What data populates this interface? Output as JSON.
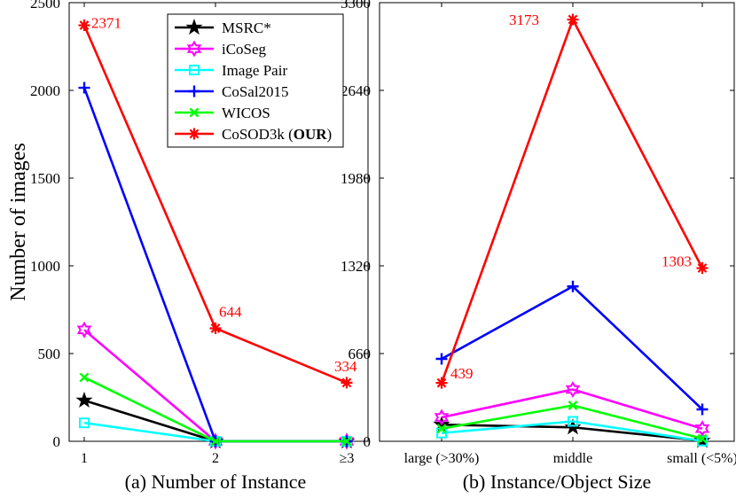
{
  "chart_data": [
    {
      "type": "line",
      "xlabel": "(a) Number of Instance",
      "ylabel": "Number of images",
      "categories": [
        "1",
        "2",
        "≥3"
      ],
      "ylim": [
        0,
        2500
      ],
      "yticks": [
        0,
        500,
        1000,
        1500,
        2000,
        2500
      ],
      "grid": false,
      "legend_position": "top-right",
      "series": [
        {
          "name": "MSRC*",
          "color": "#000000",
          "marker": "star",
          "values": [
            233,
            0,
            0
          ]
        },
        {
          "name": "iCoSeg",
          "color": "#ff00ff",
          "marker": "hexagram",
          "values": [
            635,
            0,
            0
          ]
        },
        {
          "name": "Image Pair",
          "color": "#00ffff",
          "marker": "square",
          "values": [
            105,
            0,
            0
          ]
        },
        {
          "name": "CoSal2015",
          "color": "#0000ff",
          "marker": "plus",
          "values": [
            2015,
            0,
            0
          ]
        },
        {
          "name": "WICOS",
          "color": "#00ff00",
          "marker": "x",
          "values": [
            364,
            0,
            0
          ]
        },
        {
          "name": "CoSOD3k",
          "name_suffix": "OUR",
          "color": "#ff0000",
          "marker": "asterisk",
          "values": [
            2371,
            644,
            334
          ]
        }
      ],
      "annotations": [
        {
          "text": "2371",
          "category_index": 0,
          "value": 2371,
          "color": "#ff0000"
        },
        {
          "text": "644",
          "category_index": 1,
          "value": 644,
          "color": "#ff0000"
        },
        {
          "text": "334",
          "category_index": 2,
          "value": 334,
          "color": "#ff0000"
        }
      ]
    },
    {
      "type": "line",
      "xlabel": "(b) Instance/Object Size",
      "ylabel": "",
      "categories": [
        "large (>30%)",
        "middle",
        "small (<5%)"
      ],
      "ylim": [
        0,
        3300
      ],
      "yticks": [
        0,
        660,
        1320,
        1980,
        2640,
        3300
      ],
      "grid": false,
      "series": [
        {
          "name": "MSRC*",
          "color": "#000000",
          "marker": "star",
          "values": [
            125,
            105,
            5
          ]
        },
        {
          "name": "iCoSeg",
          "color": "#ff00ff",
          "marker": "hexagram",
          "values": [
            180,
            390,
            95
          ]
        },
        {
          "name": "Image Pair",
          "color": "#00ffff",
          "marker": "square",
          "values": [
            62,
            150,
            2
          ]
        },
        {
          "name": "CoSal2015",
          "color": "#0000ff",
          "marker": "plus",
          "values": [
            620,
            1165,
            240
          ]
        },
        {
          "name": "WICOS",
          "color": "#00ff00",
          "marker": "x",
          "values": [
            95,
            270,
            20
          ]
        },
        {
          "name": "CoSOD3k",
          "name_suffix": "OUR",
          "color": "#ff0000",
          "marker": "asterisk",
          "values": [
            439,
            3173,
            1303
          ]
        }
      ],
      "annotations": [
        {
          "text": "439",
          "category_index": 0,
          "value": 439,
          "color": "#ff0000"
        },
        {
          "text": "3173",
          "category_index": 1,
          "value": 3173,
          "color": "#ff0000"
        },
        {
          "text": "1303",
          "category_index": 2,
          "value": 1303,
          "color": "#ff0000"
        }
      ]
    }
  ]
}
